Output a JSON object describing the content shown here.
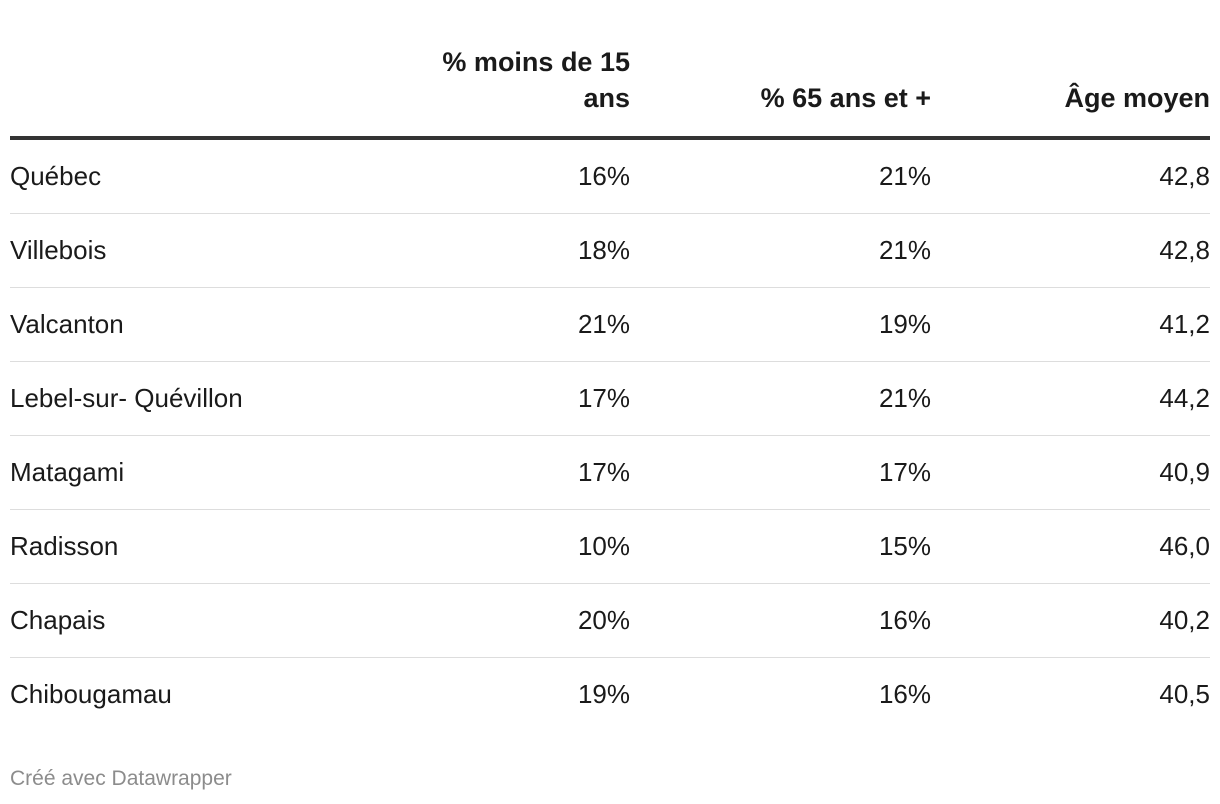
{
  "chart_data": {
    "type": "table",
    "columns": [
      "",
      "% moins de 15 ans",
      "% 65 ans et +",
      "Âge moyen"
    ],
    "rows": [
      {
        "name": "Québec",
        "under15": "16%",
        "over65": "21%",
        "avg_age": "42,8"
      },
      {
        "name": "Villebois",
        "under15": "18%",
        "over65": "21%",
        "avg_age": "42,8"
      },
      {
        "name": "Valcanton",
        "under15": "21%",
        "over65": "19%",
        "avg_age": "41,2"
      },
      {
        "name": "Lebel-sur- Quévillon",
        "under15": "17%",
        "over65": "21%",
        "avg_age": "44,2"
      },
      {
        "name": "Matagami",
        "under15": "17%",
        "over65": "17%",
        "avg_age": "40,9"
      },
      {
        "name": "Radisson",
        "under15": "10%",
        "over65": "15%",
        "avg_age": "46,0"
      },
      {
        "name": "Chapais",
        "under15": "20%",
        "over65": "16%",
        "avg_age": "40,2"
      },
      {
        "name": "Chibougamau",
        "under15": "19%",
        "over65": "16%",
        "avg_age": "40,5"
      }
    ]
  },
  "footer": {
    "credit": "Créé avec Datawrapper"
  },
  "colors": {
    "text": "#1a1a1a",
    "header_rule": "#333333",
    "row_rule": "#dddddd",
    "footer_text": "#8c8c8c"
  }
}
